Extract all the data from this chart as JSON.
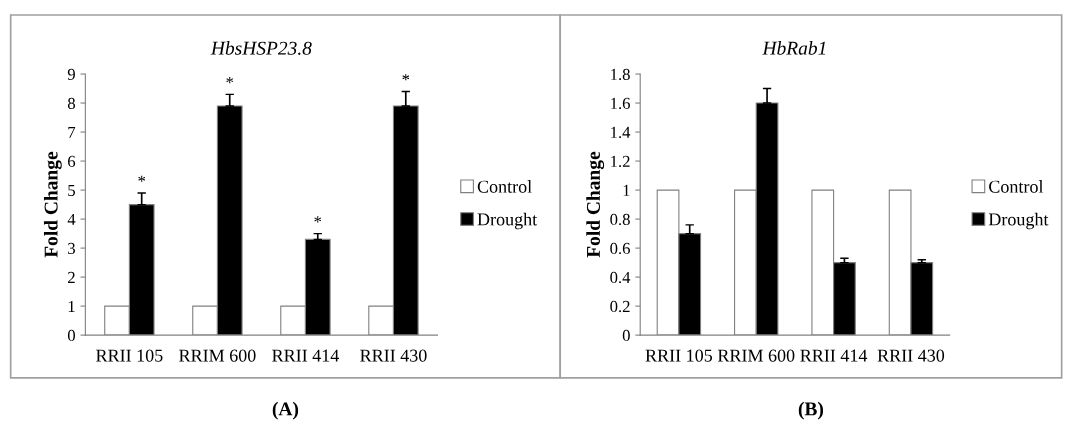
{
  "chart_data": [
    {
      "type": "bar",
      "title": "HbsHSP23.8",
      "ylabel": "Fold Change",
      "categories": [
        "RRII 105",
        "RRIM 600",
        "RRII 414",
        "RRII 430"
      ],
      "series": [
        {
          "name": "Control",
          "color": "#ffffff",
          "values": [
            1,
            1,
            1,
            1
          ]
        },
        {
          "name": "Drought",
          "color": "#000000",
          "values": [
            4.5,
            7.9,
            3.3,
            7.9
          ],
          "errors": [
            0.4,
            0.4,
            0.2,
            0.5
          ]
        }
      ],
      "ylim": [
        0,
        9
      ],
      "yticks": [
        0,
        1,
        2,
        3,
        4,
        5,
        6,
        7,
        8,
        9
      ],
      "legend": "right",
      "grid": false,
      "annotations": [
        "*",
        "*",
        "*",
        "*",
        "(A)"
      ]
    },
    {
      "type": "bar",
      "title": "HbRab1",
      "ylabel": "Fold Change",
      "categories": [
        "RRII 105",
        "RRIM 600",
        "RRII 414",
        "RRII 430"
      ],
      "series": [
        {
          "name": "Control",
          "color": "#ffffff",
          "values": [
            1,
            1,
            1,
            1
          ]
        },
        {
          "name": "Drought",
          "color": "#000000",
          "values": [
            0.7,
            1.6,
            0.5,
            0.5
          ],
          "errors": [
            0.06,
            0.1,
            0.03,
            0.02
          ]
        }
      ],
      "ylim": [
        0,
        1.8
      ],
      "yticks": [
        0,
        {
          "value": 0.2,
          "label": "0.2"
        },
        {
          "value": 0.4,
          "label": "0.4"
        },
        {
          "value": 0.6,
          "label": "0.6"
        },
        {
          "value": 0.8,
          "label": "0.8"
        },
        {
          "value": 1,
          "label": "1"
        },
        {
          "value": 1.2,
          "label": "1.2"
        },
        {
          "value": 1.4,
          "label": "1.4"
        },
        {
          "value": 1.6,
          "label": "1.6"
        },
        {
          "value": 1.8,
          "label": "1.8"
        }
      ],
      "legend": "right",
      "grid": false,
      "annotations": [
        "(B)"
      ]
    }
  ]
}
